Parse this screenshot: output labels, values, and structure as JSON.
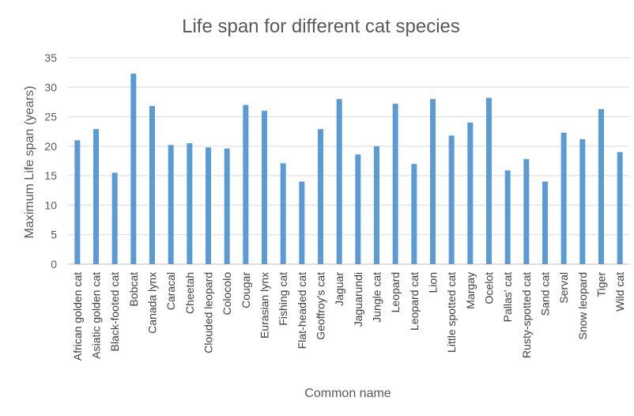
{
  "chart_data": {
    "type": "bar",
    "title": "Life span for different cat species",
    "xlabel": "Common name",
    "ylabel": "Maximum Life span (years)",
    "ylim": [
      0,
      35
    ],
    "yticks": [
      0,
      5,
      10,
      15,
      20,
      25,
      30,
      35
    ],
    "grid": true,
    "legend": "none",
    "color": "#5b9bd5",
    "categories": [
      "African golden cat",
      "Asiatic golden cat",
      "Black-footed cat",
      "Bobcat",
      "Canada lynx",
      "Caracal",
      "Cheetah",
      "Clouded leopard",
      "Colocolo",
      "Cougar",
      "Eurasian lynx",
      "Fishing cat",
      "Flat-headed cat",
      "Geoffroy's cat",
      "Jaguar",
      "Jaguarundi",
      "Jungle cat",
      "Leopard",
      "Leopard cat",
      "Lion",
      "Little spotted cat",
      "Margay",
      "Ocelot",
      "Pallas' cat",
      "Rusty-spotted cat",
      "Sand cat",
      "Serval",
      "Snow leopard",
      "Tiger",
      "Wild cat"
    ],
    "values": [
      21,
      22.9,
      15.5,
      32.3,
      26.8,
      20.2,
      20.5,
      19.8,
      19.6,
      27,
      26,
      17.1,
      14,
      22.9,
      28,
      18.6,
      20,
      27.2,
      17,
      28,
      21.8,
      24,
      28.2,
      15.9,
      17.8,
      14,
      22.3,
      21.2,
      26.3,
      19
    ]
  }
}
